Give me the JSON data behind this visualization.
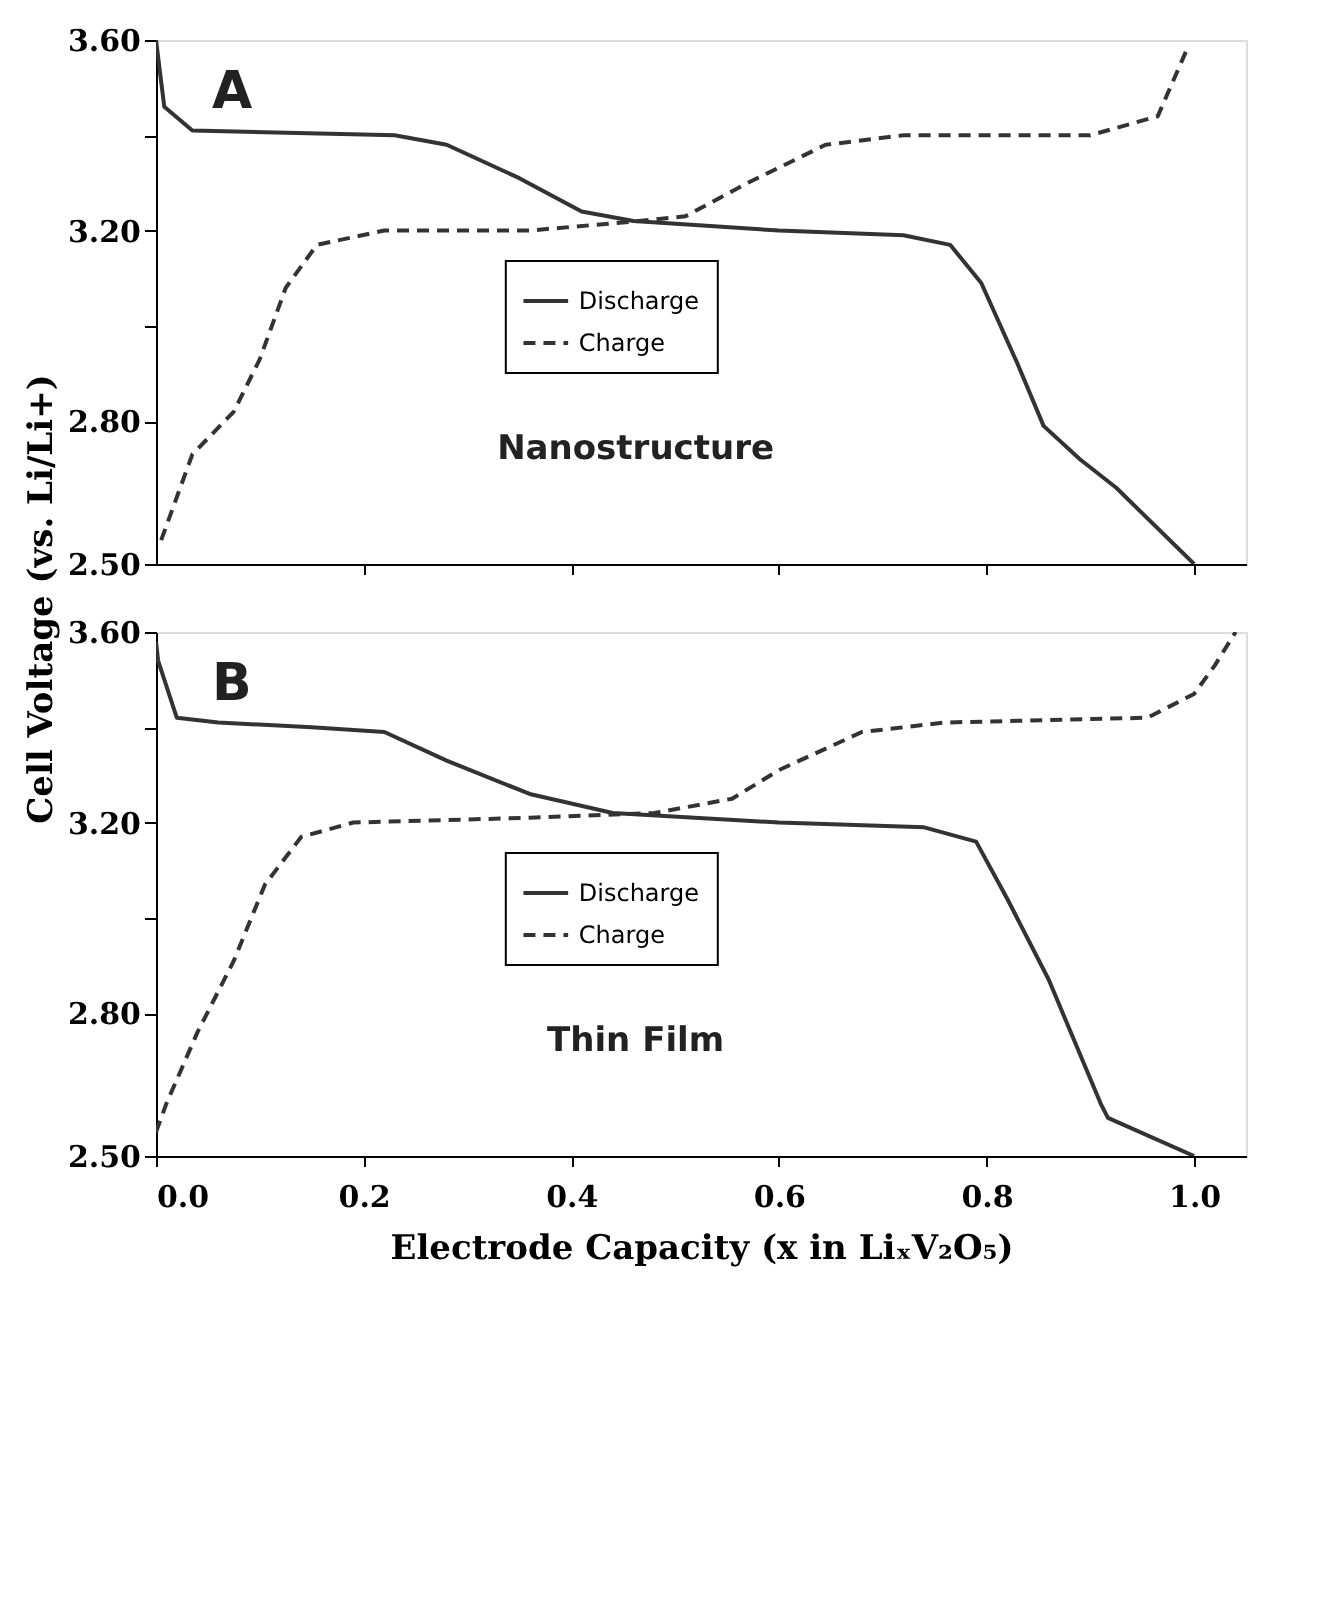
{
  "chart_data": [
    {
      "type": "line",
      "ylabel": "Cell Voltage (vs. Li/Li+)",
      "annotations": [
        "A",
        "Nanostructure"
      ],
      "legend": "center",
      "tick_labels": "y",
      "xlim": [
        0,
        1.05
      ],
      "xticks": [
        {
          "value": 0.2,
          "label": null
        },
        {
          "value": 0.4,
          "label": null
        },
        {
          "value": 0.6,
          "label": null
        },
        {
          "value": 0.8,
          "label": null
        },
        {
          "value": 1,
          "label": null
        }
      ],
      "ylim": [
        2.5,
        3.6
      ],
      "yticks": [
        {
          "value": 2.5,
          "label": "2.50"
        },
        {
          "value": 2.8,
          "label": "2.80"
        },
        {
          "value": 3.0,
          "label": null
        },
        {
          "value": 3.2,
          "label": "3.20"
        },
        {
          "value": 3.4,
          "label": null
        },
        {
          "value": 3.6,
          "label": "3.60"
        }
      ],
      "series": [
        {
          "name": "Discharge",
          "color": "#333333",
          "line_style": "solid",
          "x": [
            0,
            0.008,
            0.035,
            0.23,
            0.28,
            0.35,
            0.41,
            0.46,
            0.6,
            0.72,
            0.765,
            0.795,
            0.83,
            0.855,
            0.89,
            0.925,
            1.0
          ],
          "values": [
            3.6,
            3.46,
            3.41,
            3.4,
            3.38,
            3.31,
            3.24,
            3.22,
            3.2,
            3.19,
            3.17,
            3.09,
            2.92,
            2.79,
            2.72,
            2.66,
            2.5
          ]
        },
        {
          "name": "Charge",
          "color": "#333333",
          "line_style": "dashed",
          "x": [
            0.005,
            0.035,
            0.075,
            0.1,
            0.125,
            0.155,
            0.22,
            0.36,
            0.465,
            0.51,
            0.57,
            0.645,
            0.72,
            0.9,
            0.965,
            0.995
          ],
          "values": [
            2.55,
            2.73,
            2.82,
            2.93,
            3.08,
            3.17,
            3.2,
            3.2,
            3.22,
            3.23,
            3.3,
            3.38,
            3.4,
            3.4,
            3.44,
            3.59
          ]
        }
      ]
    },
    {
      "type": "line",
      "xlabel": "Electrode Capacity (x in LiₓV₂O₅)",
      "annotations": [
        "B",
        "Thin Film"
      ],
      "legend": "center",
      "xlim": [
        0,
        1.05
      ],
      "xticks": [
        {
          "value": 0,
          "label": "0.0"
        },
        0.2,
        0.4,
        0.6,
        0.8,
        {
          "value": 1,
          "label": "1.0"
        }
      ],
      "ylim": [
        2.5,
        3.6
      ],
      "yticks": [
        {
          "value": 2.5,
          "label": "2.50"
        },
        {
          "value": 2.8,
          "label": "2.80"
        },
        {
          "value": 3.0,
          "label": null
        },
        {
          "value": 3.2,
          "label": "3.20"
        },
        {
          "value": 3.4,
          "label": null
        },
        {
          "value": 3.6,
          "label": "3.60"
        }
      ],
      "series": [
        {
          "name": "Discharge",
          "color": "#333333",
          "line_style": "solid",
          "x": [
            0,
            0.002,
            0.02,
            0.06,
            0.15,
            0.22,
            0.28,
            0.36,
            0.44,
            0.6,
            0.74,
            0.79,
            0.82,
            0.86,
            0.91,
            0.917,
            1.0
          ],
          "values": [
            3.58,
            3.54,
            3.42,
            3.41,
            3.4,
            3.39,
            3.33,
            3.26,
            3.22,
            3.2,
            3.19,
            3.16,
            3.04,
            2.87,
            2.61,
            2.58,
            2.5
          ]
        },
        {
          "name": "Charge",
          "color": "#333333",
          "line_style": "dashed",
          "x": [
            0.0,
            0.01,
            0.04,
            0.075,
            0.105,
            0.14,
            0.19,
            0.36,
            0.48,
            0.555,
            0.6,
            0.68,
            0.76,
            0.955,
            1.0,
            1.02,
            1.04
          ],
          "values": [
            2.55,
            2.61,
            2.76,
            2.91,
            3.07,
            3.17,
            3.2,
            3.21,
            3.22,
            3.25,
            3.31,
            3.39,
            3.41,
            3.42,
            3.47,
            3.53,
            3.6
          ]
        }
      ]
    }
  ]
}
